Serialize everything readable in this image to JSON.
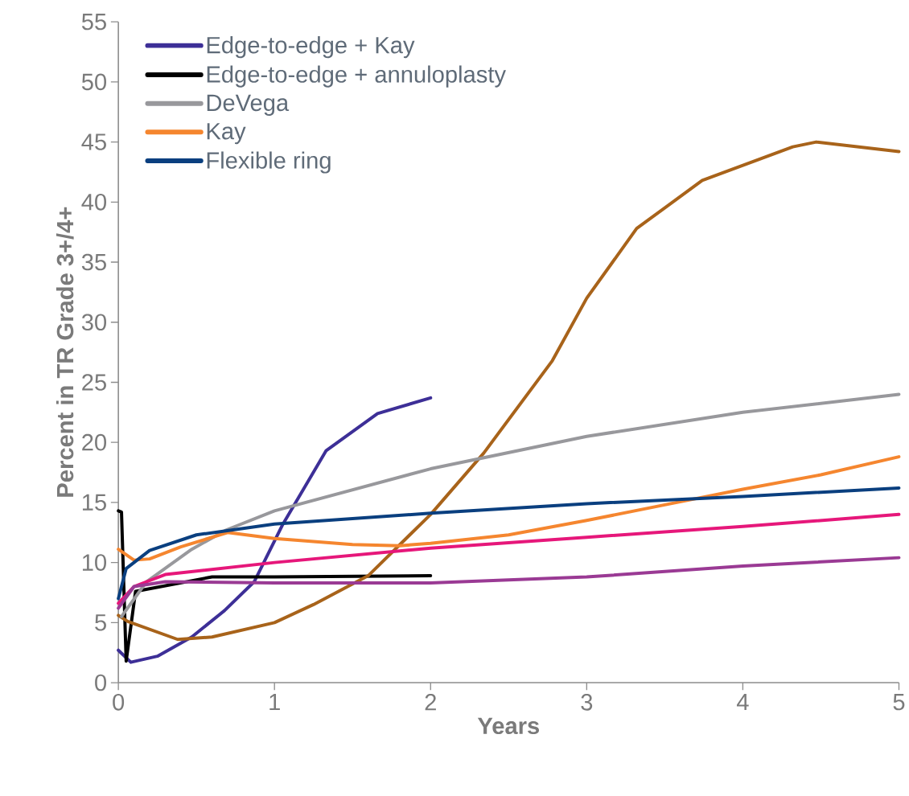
{
  "chart_data": {
    "type": "line",
    "xlabel": "Years",
    "ylabel": "Percent in TR Grade 3+/4+",
    "xlim": [
      0,
      5
    ],
    "ylim": [
      0,
      55
    ],
    "xticks": [
      0,
      1,
      2,
      3,
      4,
      5
    ],
    "yticks": [
      0,
      5,
      10,
      15,
      20,
      25,
      30,
      35,
      40,
      45,
      50,
      55
    ],
    "grid": false,
    "legend": "top left",
    "marker": "none",
    "line_style": "solid",
    "series": [
      {
        "name": "Edge-to-edge + Kay",
        "color": "#3d2f97",
        "x": [
          0,
          0.08,
          0.25,
          0.47,
          0.68,
          0.87,
          1.05,
          1.33,
          1.66,
          2.0
        ],
        "values": [
          2.7,
          1.7,
          2.2,
          3.8,
          6.0,
          8.4,
          13.1,
          19.3,
          22.4,
          23.7
        ]
      },
      {
        "name": "Edge-to-edge + annuloplasty",
        "color": "#000000",
        "x": [
          0,
          0.02,
          0.05,
          0.11,
          0.6,
          1.0,
          2.0
        ],
        "values": [
          14.3,
          14.2,
          1.8,
          7.6,
          8.8,
          8.8,
          8.9
        ]
      },
      {
        "color": "#a8631a",
        "x": [
          0,
          0.06,
          0.38,
          0.6,
          1.0,
          1.25,
          1.6,
          2.0,
          2.34,
          2.78,
          3.0,
          3.32,
          3.74,
          4.32,
          4.47,
          5.0
        ],
        "values": [
          5.6,
          5.1,
          3.6,
          3.8,
          5.0,
          6.5,
          8.9,
          14.0,
          19.1,
          26.8,
          32.0,
          37.8,
          41.8,
          44.6,
          45.0,
          44.2
        ]
      },
      {
        "name": "DeVega",
        "color": "#98989c",
        "x": [
          0.02,
          0.18,
          0.47,
          0.69,
          1.0,
          2.0,
          3.0,
          4.0,
          5.0
        ],
        "values": [
          5.5,
          8.4,
          11.1,
          12.7,
          14.3,
          17.8,
          20.5,
          22.5,
          24.0
        ]
      },
      {
        "name": "Kay",
        "color": "#f5862f",
        "x": [
          0,
          0.1,
          0.2,
          0.4,
          0.7,
          1.0,
          1.5,
          1.8,
          2.0,
          2.5,
          3.0,
          3.5,
          4.0,
          4.5,
          5.0
        ],
        "values": [
          11.1,
          10.2,
          10.3,
          11.3,
          12.5,
          12.0,
          11.5,
          11.4,
          11.6,
          12.3,
          13.5,
          14.8,
          16.1,
          17.3,
          18.8
        ]
      },
      {
        "name": "Flexible ring",
        "color": "#0a3f7f",
        "x": [
          0,
          0.05,
          0.2,
          0.5,
          1.0,
          2.0,
          3.0,
          4.0,
          5.0
        ],
        "values": [
          7.0,
          9.5,
          11.0,
          12.3,
          13.2,
          14.1,
          14.9,
          15.5,
          16.2
        ]
      },
      {
        "color": "#e6177a",
        "x": [
          0,
          0.1,
          0.3,
          1.0,
          2.0,
          3.0,
          4.0,
          5.0
        ],
        "values": [
          6.6,
          8.0,
          9.0,
          10.0,
          11.2,
          12.1,
          13.0,
          14.0
        ]
      },
      {
        "color": "#9a3a94",
        "x": [
          0,
          0.1,
          0.3,
          1.0,
          2.0,
          3.0,
          4.0,
          5.0
        ],
        "values": [
          6.2,
          8.0,
          8.4,
          8.3,
          8.3,
          8.8,
          9.7,
          10.4
        ]
      }
    ]
  }
}
